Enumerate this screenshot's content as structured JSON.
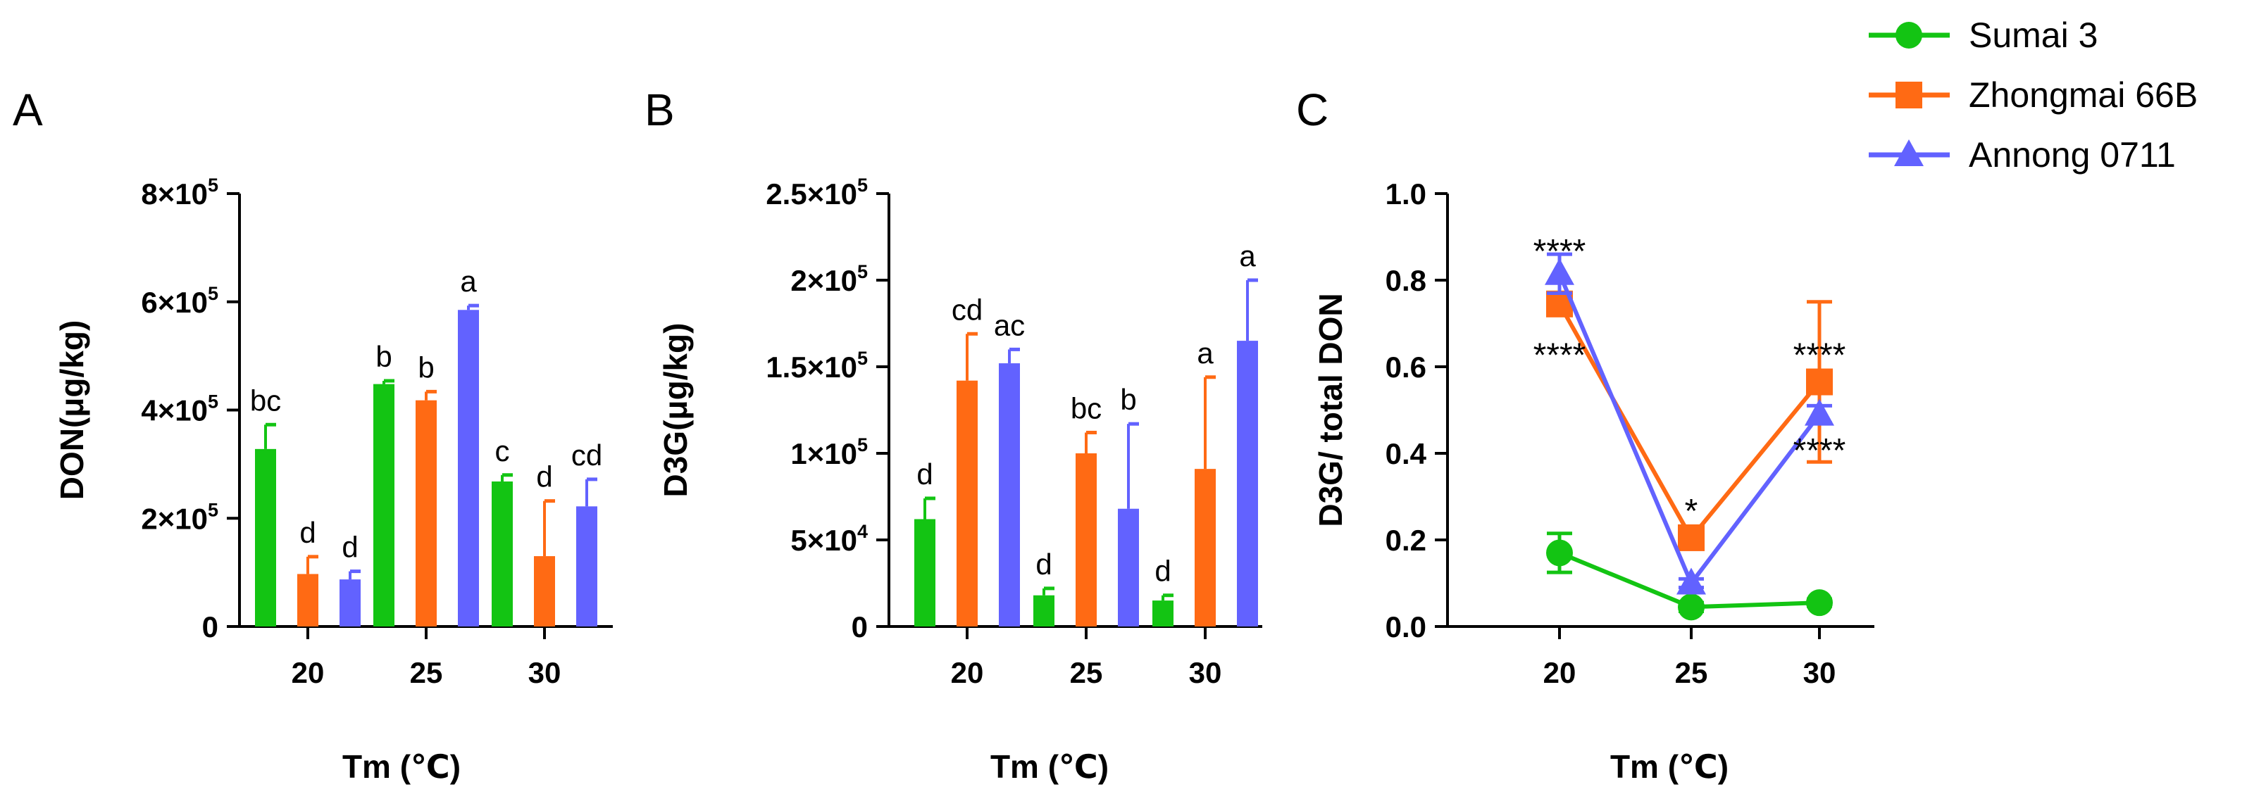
{
  "colors": {
    "green": "#13c413",
    "orange": "#ff6a14",
    "blue": "#6262ff",
    "axis": "#000000"
  },
  "legend": [
    {
      "label": "Sumai 3",
      "color": "#13c413",
      "marker": "circle"
    },
    {
      "label": "Zhongmai 66B",
      "color": "#ff6a14",
      "marker": "square"
    },
    {
      "label": "Annong 0711",
      "color": "#6262ff",
      "marker": "triangle"
    }
  ],
  "chart_data": [
    {
      "panel": "A",
      "type": "bar",
      "ylabel": "DON(μg/kg)",
      "xlabel": "Tm (℃)",
      "ylim": [
        0,
        800000
      ],
      "yticks": [
        {
          "value": 0,
          "mant": "0",
          "exp": ""
        },
        {
          "value": 200000,
          "mant": "2×10",
          "exp": "5"
        },
        {
          "value": 400000,
          "mant": "4×10",
          "exp": "5"
        },
        {
          "value": 600000,
          "mant": "6×10",
          "exp": "5"
        },
        {
          "value": 800000,
          "mant": "8×10",
          "exp": "5"
        }
      ],
      "categories": [
        "20",
        "25",
        "30"
      ],
      "series": [
        {
          "name": "Sumai 3",
          "values": [
            328000,
            448000,
            268000
          ],
          "errors": [
            45000,
            6000,
            12000
          ],
          "letters": [
            "bc",
            "b",
            "c"
          ]
        },
        {
          "name": "Zhongmai 66B",
          "values": [
            97000,
            418000,
            130000
          ],
          "errors": [
            32000,
            16000,
            102000
          ],
          "letters": [
            "d",
            "b",
            "d"
          ]
        },
        {
          "name": "Annong 0711",
          "values": [
            87000,
            585000,
            222000
          ],
          "errors": [
            15000,
            8000,
            50000
          ],
          "letters": [
            "d",
            "a",
            "cd"
          ]
        }
      ]
    },
    {
      "panel": "B",
      "type": "bar",
      "ylabel": "D3G(μg/kg)",
      "xlabel": "Tm (℃)",
      "ylim": [
        0,
        250000
      ],
      "yticks": [
        {
          "value": 0,
          "mant": "0",
          "exp": ""
        },
        {
          "value": 50000,
          "mant": "5×10",
          "exp": "4"
        },
        {
          "value": 100000,
          "mant": "1×10",
          "exp": "5"
        },
        {
          "value": 150000,
          "mant": "1.5×10",
          "exp": "5"
        },
        {
          "value": 200000,
          "mant": "2×10",
          "exp": "5"
        },
        {
          "value": 250000,
          "mant": "2.5×10",
          "exp": "5"
        }
      ],
      "categories": [
        "20",
        "25",
        "30"
      ],
      "series": [
        {
          "name": "Sumai 3",
          "values": [
            62000,
            18000,
            15000
          ],
          "errors": [
            12000,
            4000,
            3000
          ],
          "letters": [
            "d",
            "d",
            "d"
          ]
        },
        {
          "name": "Zhongmai 66B",
          "values": [
            142000,
            100000,
            91000
          ],
          "errors": [
            27000,
            12000,
            53000
          ],
          "letters": [
            "cd",
            "bc",
            "a"
          ]
        },
        {
          "name": "Annong 0711",
          "values": [
            152000,
            68000,
            165000
          ],
          "errors": [
            8000,
            49000,
            35000
          ],
          "letters": [
            "ac",
            "b",
            "a"
          ]
        }
      ]
    },
    {
      "panel": "C",
      "type": "line",
      "ylabel": "D3G/ total DON",
      "xlabel": "Tm (℃)",
      "ylim": [
        0,
        1.0
      ],
      "yticks": [
        {
          "value": 0,
          "mant": "0.0",
          "exp": ""
        },
        {
          "value": 0.2,
          "mant": "0.2",
          "exp": ""
        },
        {
          "value": 0.4,
          "mant": "0.4",
          "exp": ""
        },
        {
          "value": 0.6,
          "mant": "0.6",
          "exp": ""
        },
        {
          "value": 0.8,
          "mant": "0.8",
          "exp": ""
        },
        {
          "value": 1.0,
          "mant": "1.0",
          "exp": ""
        }
      ],
      "x": [
        "20",
        "25",
        "30"
      ],
      "series": [
        {
          "name": "Sumai 3",
          "marker": "circle",
          "values": [
            0.17,
            0.045,
            0.055
          ],
          "errors": [
            0.045,
            0.01,
            0.008
          ]
        },
        {
          "name": "Zhongmai 66B",
          "marker": "square",
          "values": [
            0.745,
            0.205,
            0.565
          ],
          "errors": [
            0.02,
            0.025,
            0.185
          ]
        },
        {
          "name": "Annong 0711",
          "marker": "triangle",
          "values": [
            0.815,
            0.1,
            0.49
          ],
          "errors": [
            0.045,
            0.01,
            0.02
          ]
        }
      ],
      "annotations": [
        {
          "text": "****",
          "x": "20",
          "y": 0.87
        },
        {
          "text": "****",
          "x": "20",
          "y": 0.63
        },
        {
          "text": "*",
          "x": "25",
          "y": 0.27
        },
        {
          "text": "****",
          "x": "30",
          "y": 0.63
        },
        {
          "text": "****",
          "x": "30",
          "y": 0.41
        }
      ]
    }
  ]
}
